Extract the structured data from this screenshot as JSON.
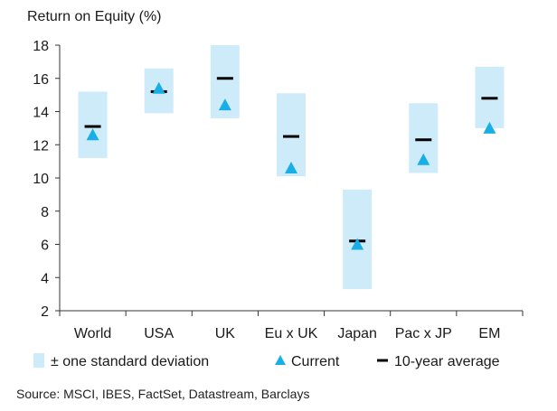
{
  "chart_data": {
    "type": "range",
    "ylabel": "Return on Equity (%)",
    "ylim": [
      2,
      18
    ],
    "yticks": [
      2,
      4,
      6,
      8,
      10,
      12,
      14,
      16,
      18
    ],
    "categories": [
      "World",
      "USA",
      "UK",
      "Eu x UK",
      "Japan",
      "Pac x JP",
      "EM"
    ],
    "series": [
      {
        "name": "± one standard deviation",
        "kind": "band",
        "low": [
          11.2,
          13.9,
          13.6,
          10.1,
          3.3,
          10.3,
          13.0
        ],
        "high": [
          15.2,
          16.6,
          18.0,
          15.1,
          9.3,
          14.5,
          16.7
        ]
      },
      {
        "name": "Current",
        "kind": "marker",
        "values": [
          12.6,
          15.4,
          14.4,
          10.6,
          6.0,
          11.1,
          13.0
        ]
      },
      {
        "name": "10-year average",
        "kind": "dash",
        "values": [
          13.1,
          15.2,
          16.0,
          12.5,
          6.2,
          12.3,
          14.8
        ]
      }
    ],
    "colors": {
      "band": "#cdebf9",
      "marker": "#1aaee6",
      "dash": "#000000",
      "axis": "#333333"
    },
    "grid": false,
    "legend_position": "bottom"
  },
  "source": "Source: MSCI, IBES, FactSet, Datastream, Barclays"
}
